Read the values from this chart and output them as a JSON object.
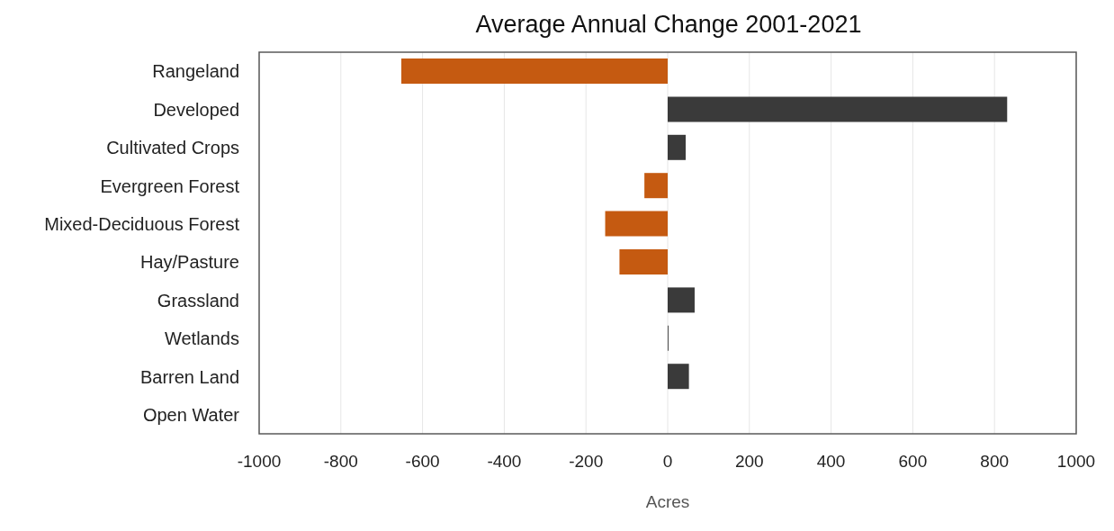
{
  "chart_data": {
    "type": "bar",
    "orientation": "horizontal",
    "title": "Average Annual Change 2001-2021",
    "xlabel": "Acres",
    "categories": [
      "Rangeland",
      "Developed",
      "Cultivated Crops",
      "Evergreen Forest",
      "Mixed-Deciduous Forest",
      "Hay/Pasture",
      "Grassland",
      "Wetlands",
      "Barren Land",
      "Open Water"
    ],
    "values": [
      -652,
      831,
      44,
      -57,
      -153,
      -118,
      66,
      2,
      52,
      0
    ],
    "colors": [
      "#c55a11",
      "#3a3a3a",
      "#3a3a3a",
      "#c55a11",
      "#c55a11",
      "#c55a11",
      "#3a3a3a",
      "#3a3a3a",
      "#3a3a3a",
      "#3a3a3a"
    ],
    "xlim": [
      -1000,
      1000
    ],
    "xticks": [
      -1000,
      -800,
      -600,
      -400,
      -200,
      0,
      200,
      400,
      600,
      800,
      1000
    ],
    "grid": "x"
  }
}
